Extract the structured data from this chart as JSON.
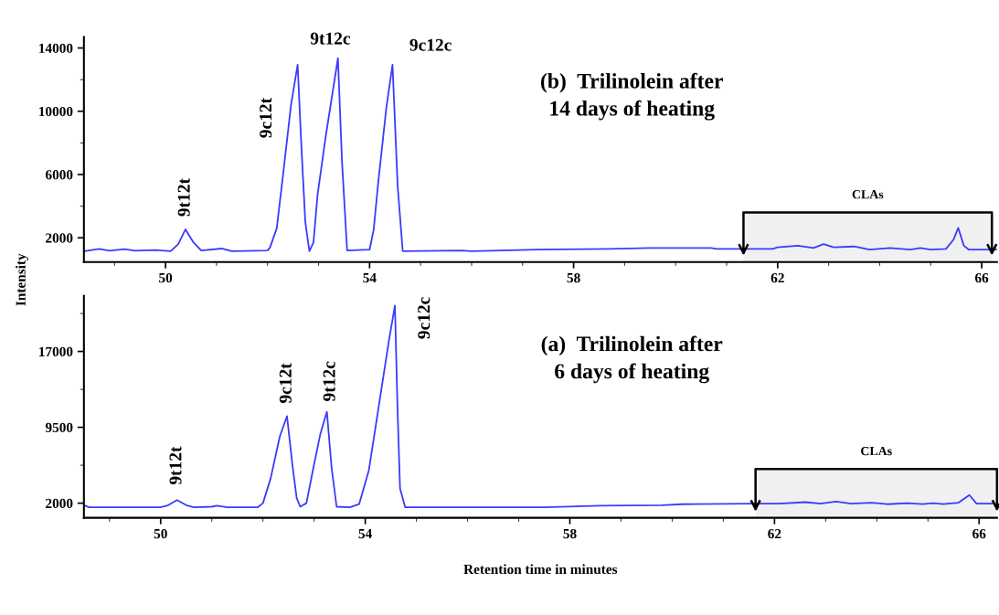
{
  "chart_data": [
    {
      "type": "line",
      "ylabel": "Intensity",
      "color": "#3a3aff",
      "xlim": [
        48.4,
        66.3
      ],
      "xticks": [
        50,
        54,
        58,
        62,
        66
      ],
      "ylim": [
        470,
        14700
      ],
      "yticks": [
        2000,
        6000,
        10000,
        14000
      ],
      "x": [
        48.4,
        48.7,
        48.9,
        49.2,
        49.4,
        49.8,
        50.1,
        50.25,
        50.39,
        50.55,
        50.7,
        51.1,
        51.3,
        52.0,
        52.05,
        52.18,
        52.31,
        52.46,
        52.59,
        52.66,
        52.74,
        52.82,
        52.9,
        52.98,
        53.14,
        53.38,
        53.46,
        53.56,
        54.0,
        54.08,
        54.17,
        54.33,
        54.45,
        54.55,
        54.65,
        55.8,
        56.0,
        57.3,
        58.7,
        59.5,
        60.7,
        60.8,
        61.9,
        62.0,
        62.4,
        62.7,
        62.9,
        63.1,
        63.5,
        63.8,
        64.2,
        64.6,
        64.8,
        65.0,
        65.3,
        65.45,
        65.54,
        65.65,
        65.75,
        66.3
      ],
      "values": [
        1150,
        1300,
        1180,
        1280,
        1180,
        1220,
        1150,
        1600,
        2530,
        1700,
        1200,
        1320,
        1150,
        1200,
        1400,
        2600,
        6150,
        10400,
        12940,
        8000,
        3000,
        1150,
        1700,
        4700,
        8400,
        13350,
        6800,
        1200,
        1250,
        2500,
        5500,
        10250,
        12940,
        5300,
        1150,
        1200,
        1150,
        1250,
        1300,
        1350,
        1350,
        1300,
        1300,
        1400,
        1500,
        1350,
        1600,
        1400,
        1450,
        1250,
        1350,
        1250,
        1350,
        1250,
        1300,
        1900,
        2630,
        1500,
        1250,
        1250
      ],
      "bands": [
        {
          "axis": "x",
          "from": 61.33,
          "to": 66.2,
          "label": "CLAs",
          "color": "#000000"
        }
      ],
      "annotations": [
        {
          "text": "9t12t",
          "x": 50.39,
          "y": 2530
        },
        {
          "text": "9c12t",
          "x": 52.59,
          "y": 12940
        },
        {
          "text": "9t12c",
          "x": 53.38,
          "y": 13350
        },
        {
          "text": "9c12c",
          "x": 54.45,
          "y": 12940
        },
        "(b)  Trilinolein after\n14 days of heating"
      ],
      "grid": false,
      "legend": false
    },
    {
      "type": "line",
      "xlabel": "Retention time in minutes",
      "color": "#3a3aff",
      "xlim": [
        48.5,
        66.35
      ],
      "xticks": [
        50,
        54,
        58,
        62,
        66
      ],
      "ylim": [
        550,
        22500
      ],
      "yticks": [
        2000,
        9500,
        17000
      ],
      "x": [
        48.5,
        48.6,
        50.0,
        50.15,
        50.32,
        50.5,
        50.65,
        51.0,
        51.1,
        51.3,
        51.9,
        52.0,
        52.15,
        52.33,
        52.47,
        52.58,
        52.66,
        52.73,
        52.85,
        52.99,
        53.12,
        53.25,
        53.34,
        53.44,
        53.7,
        53.88,
        54.07,
        54.26,
        54.46,
        54.58,
        54.63,
        54.68,
        54.78,
        57.5,
        58.6,
        59.8,
        60.2,
        61.6,
        62.1,
        62.6,
        62.9,
        63.2,
        63.5,
        63.9,
        64.2,
        64.6,
        64.9,
        65.1,
        65.3,
        65.6,
        65.81,
        65.95,
        66.25
      ],
      "values": [
        1800,
        1600,
        1600,
        1800,
        2300,
        1800,
        1600,
        1650,
        1750,
        1600,
        1600,
        2000,
        4440,
        8600,
        10600,
        5600,
        2500,
        1650,
        2000,
        5600,
        8800,
        11040,
        5600,
        1650,
        1600,
        1900,
        5250,
        11450,
        18000,
        21530,
        11500,
        3450,
        1600,
        1600,
        1750,
        1800,
        1900,
        1950,
        1950,
        2100,
        1950,
        2150,
        1950,
        2050,
        1900,
        2000,
        1900,
        2000,
        1900,
        2050,
        2800,
        1950,
        1950
      ],
      "bands": [
        {
          "axis": "x",
          "from": 61.63,
          "to": 66.35,
          "label": "CLAs",
          "color": "#000000"
        }
      ],
      "annotations": [
        {
          "text": "9t12t",
          "x": 50.32,
          "y": 2300
        },
        {
          "text": "9c12t",
          "x": 52.47,
          "y": 10600
        },
        {
          "text": "9t12c",
          "x": 53.25,
          "y": 11040
        },
        {
          "text": "9c12c",
          "x": 54.58,
          "y": 21530
        },
        "(a)  Trilinolein after\n6 days of heating"
      ],
      "grid": false,
      "legend": false
    }
  ]
}
